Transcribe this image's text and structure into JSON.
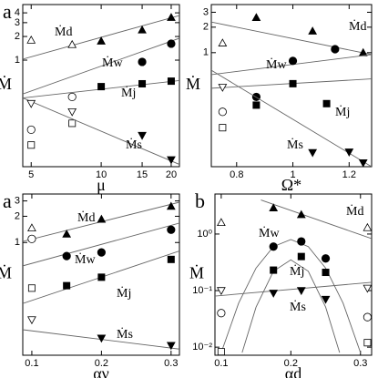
{
  "chart_data": [
    {
      "type": "scatter",
      "panel_label": "a",
      "xlabel": "μ",
      "ylabel": "Ṁ",
      "log_x": true,
      "log_y": true,
      "xlim": [
        4.6,
        21.7
      ],
      "ylim": [
        0.044,
        5.1
      ],
      "xticks": [
        5,
        10,
        15,
        20
      ],
      "yticks": [
        1,
        2,
        3,
        4
      ],
      "series": [
        {
          "name": "Ṁd",
          "marker": "triangle-up",
          "color": "#000000",
          "x": [
            10,
            15,
            20
          ],
          "values": [
            1.75,
            2.42,
            3.5
          ],
          "open_x": [
            5,
            7.5
          ],
          "open_values": [
            1.8,
            1.58
          ],
          "fit": {
            "x": [
              4.6,
              21.7
            ],
            "values": [
              1.03,
              3.7
            ]
          }
        },
        {
          "name": "Ṁw",
          "marker": "circle",
          "color": "#000000",
          "x": [
            15,
            20
          ],
          "values": [
            0.95,
            1.62
          ],
          "open_x": [
            5,
            7.5
          ],
          "open_values": [
            0.13,
            0.34
          ],
          "fit": {
            "x": [
              4.6,
              21.7
            ],
            "values": [
              0.37,
              1.9
            ]
          }
        },
        {
          "name": "Ṁj",
          "marker": "square",
          "color": "#000000",
          "x": [
            10,
            15,
            20
          ],
          "values": [
            0.46,
            0.5,
            0.54
          ],
          "open_x": [
            5,
            7.5
          ],
          "open_values": [
            0.083,
            0.157
          ],
          "fit": {
            "x": [
              4.6,
              21.7
            ],
            "values": [
              0.33,
              0.55
            ]
          }
        },
        {
          "name": "Ṁs",
          "marker": "triangle-down",
          "color": "#000000",
          "x": [
            15,
            20
          ],
          "values": [
            0.11,
            0.054
          ],
          "open_x": [
            5,
            7.5
          ],
          "open_values": [
            0.28,
            0.22
          ],
          "fit": {
            "x": [
              4.6,
              21.7
            ],
            "values": [
              0.33,
              0.047
            ]
          }
        }
      ]
    },
    {
      "type": "scatter",
      "xlabel": "Ω*",
      "ylabel": "Ṁ",
      "log_x": false,
      "log_y": true,
      "xlim": [
        0.71,
        1.28
      ],
      "ylim": [
        0.045,
        3.7
      ],
      "xticks": [
        0.8,
        1,
        1.2
      ],
      "yticks": [
        1,
        2,
        3
      ],
      "series": [
        {
          "name": "Ṁd",
          "marker": "triangle-up",
          "color": "#000000",
          "x": [
            0.87,
            1.07,
            1.25
          ],
          "values": [
            2.6,
            1.8,
            1.0
          ],
          "open_x": [
            0.75
          ],
          "open_values": [
            1.3
          ],
          "fit": {
            "x": [
              0.71,
              1.28
            ],
            "values": [
              2.3,
              0.95
            ]
          }
        },
        {
          "name": "Ṁw",
          "marker": "circle",
          "color": "#000000",
          "x": [
            0.87,
            1.0,
            1.15
          ],
          "values": [
            0.3,
            0.8,
            1.1
          ],
          "open_x": [
            0.75
          ],
          "open_values": [
            0.2
          ],
          "fit": {
            "x": [
              0.71,
              1.28
            ],
            "values": [
              0.55,
              0.95
            ]
          }
        },
        {
          "name": "Ṁj",
          "marker": "square",
          "color": "#000000",
          "x": [
            0.87,
            1.0,
            1.12
          ],
          "values": [
            0.24,
            0.43,
            0.25
          ],
          "open_x": [
            0.75
          ],
          "open_values": [
            0.13
          ],
          "fit": {
            "x": [
              0.71,
              1.28
            ],
            "values": [
              0.38,
              0.49
            ]
          }
        },
        {
          "name": "Ṁs",
          "marker": "triangle-down",
          "color": "#000000",
          "x": [
            1.07,
            1.2,
            1.25
          ],
          "values": [
            0.066,
            0.067,
            0.05
          ],
          "open_x": [
            0.75
          ],
          "open_values": [
            0.39
          ],
          "fit": {
            "x": [
              0.71,
              1.28
            ],
            "values": [
              0.62,
              0.045
            ]
          }
        }
      ]
    },
    {
      "type": "scatter",
      "panel_label": "a",
      "xlabel": "αν",
      "ylabel": "Ṁ",
      "log_x": false,
      "log_y": true,
      "xlim": [
        0.087,
        0.312
      ],
      "ylim": [
        0.051,
        3.6
      ],
      "xticks": [
        0.1,
        0.2,
        0.3
      ],
      "yticks": [
        1,
        2,
        3
      ],
      "series": [
        {
          "name": "Ṁd",
          "marker": "triangle-up",
          "color": "#000000",
          "x": [
            0.15,
            0.2,
            0.3
          ],
          "values": [
            1.25,
            1.85,
            2.6
          ],
          "open_x": [
            0.1
          ],
          "open_values": [
            1.47
          ],
          "fit": {
            "x": [
              0.087,
              0.312
            ],
            "values": [
              1.03,
              2.9
            ]
          }
        },
        {
          "name": "Ṁw",
          "marker": "circle",
          "color": "#000000",
          "x": [
            0.15,
            0.2,
            0.3
          ],
          "values": [
            0.7,
            0.77,
            1.4
          ],
          "open_x": [
            0.1
          ],
          "open_values": [
            1.1
          ],
          "fit": {
            "x": [
              0.087,
              0.312
            ],
            "values": [
              0.54,
              1.67
            ]
          }
        },
        {
          "name": "Ṁj",
          "marker": "square",
          "color": "#000000",
          "x": [
            0.15,
            0.2,
            0.3
          ],
          "values": [
            0.32,
            0.4,
            0.64
          ],
          "open_x": [
            0.1
          ],
          "open_values": [
            0.3
          ],
          "fit": {
            "x": [
              0.087,
              0.312
            ],
            "values": [
              0.2,
              0.8
            ]
          }
        },
        {
          "name": "Ṁs",
          "marker": "triangle-down",
          "color": "#000000",
          "x": [
            0.2,
            0.3
          ],
          "values": [
            0.08,
            0.066
          ],
          "open_x": [
            0.1
          ],
          "open_values": [
            0.13
          ],
          "fit": {
            "x": [
              0.087,
              0.312
            ],
            "values": [
              0.1,
              0.06
            ]
          }
        }
      ]
    },
    {
      "type": "scatter",
      "panel_label": "b",
      "xlabel": "αd",
      "ylabel": "Ṁ",
      "log_x": false,
      "log_y": true,
      "xlim": [
        0.091,
        0.316
      ],
      "ylim": [
        0.0072,
        5.1
      ],
      "xticks": [
        0.1,
        0.2,
        0.3
      ],
      "yticks": [
        {
          "value": 1,
          "label": "10⁰"
        },
        {
          "value": 0.1,
          "label": "10⁻¹"
        },
        {
          "value": 0.01,
          "label": "10⁻²"
        }
      ],
      "series": [
        {
          "name": "Ṁd",
          "marker": "triangle-up",
          "color": "#000000",
          "x": [
            0.175,
            0.215
          ],
          "values": [
            2.9,
            2.2
          ],
          "open_x": [
            0.1,
            0.31
          ],
          "open_values": [
            1.6,
            1.3
          ],
          "fit": {
            "x": [
              0.157,
              0.316
            ],
            "values": [
              4.0,
              0.83
            ]
          }
        },
        {
          "name": "Ṁw",
          "marker": "circle",
          "color": "#000000",
          "x": [
            0.175,
            0.215,
            0.25
          ],
          "values": [
            0.6,
            0.74,
            0.37
          ],
          "open_x": [
            0.1,
            0.31
          ],
          "open_values": [
            0.04,
            0.034
          ],
          "fit": {
            "x": [
              0.1,
              0.125,
              0.15,
              0.175,
              0.2,
              0.225,
              0.25,
              0.275,
              0.3
            ],
            "values": [
              0.008,
              0.06,
              0.25,
              0.6,
              0.8,
              0.6,
              0.25,
              0.06,
              0.008
            ]
          }
        },
        {
          "name": "Ṁj",
          "marker": "square",
          "color": "#000000",
          "x": [
            0.175,
            0.215,
            0.25
          ],
          "values": [
            0.23,
            0.4,
            0.21
          ],
          "open_x": [
            0.1,
            0.31
          ],
          "open_values": [
            0.0083,
            0.012
          ],
          "fit": {
            "x": [
              0.13,
              0.15,
              0.175,
              0.2,
              0.225,
              0.25,
              0.27
            ],
            "values": [
              0.008,
              0.051,
              0.22,
              0.35,
              0.22,
              0.051,
              0.008
            ]
          }
        },
        {
          "name": "Ṁs",
          "marker": "triangle-down",
          "color": "#000000",
          "x": [
            0.175,
            0.215,
            0.25
          ],
          "values": [
            0.09,
            0.1,
            0.07
          ],
          "open_x": [
            0.1,
            0.31
          ],
          "open_values": [
            0.1,
            0.11
          ],
          "fit": {
            "x": [
              0.091,
              0.316
            ],
            "values": [
              0.08,
              0.14
            ]
          }
        }
      ]
    }
  ]
}
